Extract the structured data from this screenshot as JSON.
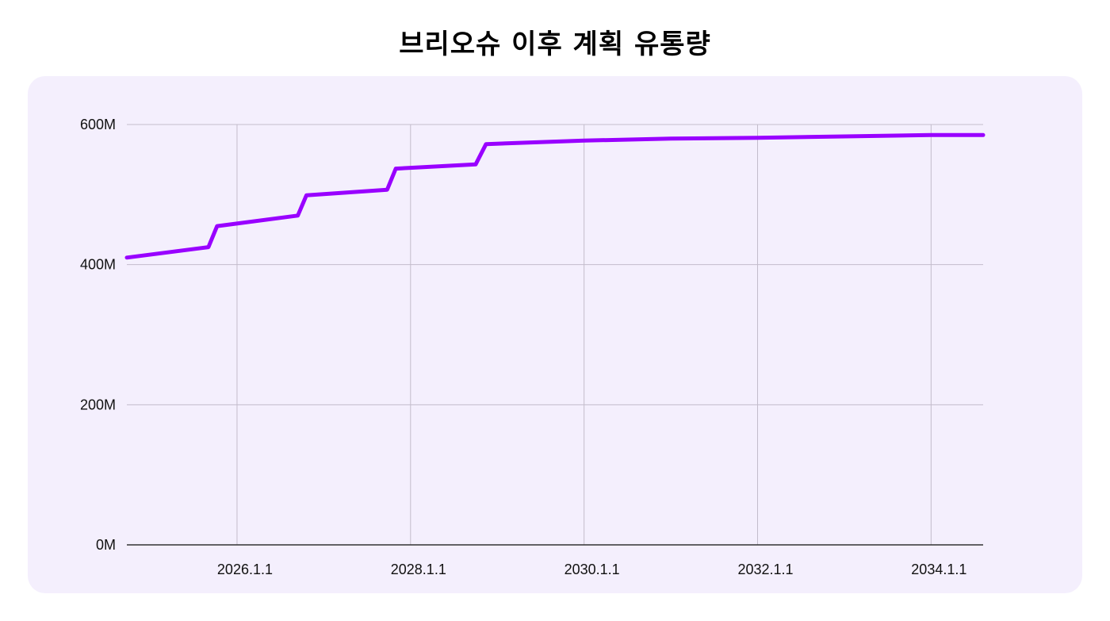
{
  "chart_data": {
    "type": "line",
    "title": "브리오슈 이후 계획 유통량",
    "xlabel": "",
    "ylabel": "",
    "x_tick_labels": [
      "2026.1.1",
      "2028.1.1",
      "2030.1.1",
      "2032.1.1",
      "2034.1.1"
    ],
    "x_tick_years": [
      2026,
      2028,
      2030,
      2032,
      2034
    ],
    "y_tick_labels": [
      "0M",
      "200M",
      "400M",
      "600M"
    ],
    "y_tick_values": [
      0,
      200,
      400,
      600
    ],
    "xlim": [
      2024.73,
      2034.6
    ],
    "ylim": [
      0,
      600
    ],
    "grid": true,
    "series": [
      {
        "color": "#9900ff",
        "x": [
          2024.73,
          2025.67,
          2025.77,
          2026.7,
          2026.8,
          2027.73,
          2027.83,
          2028.75,
          2028.87,
          2030.0,
          2031.0,
          2032.0,
          2033.0,
          2034.0,
          2034.6
        ],
        "y": [
          410,
          425,
          455,
          470,
          499,
          507,
          537,
          543,
          572,
          577,
          580,
          581,
          583,
          585,
          585
        ]
      }
    ]
  }
}
